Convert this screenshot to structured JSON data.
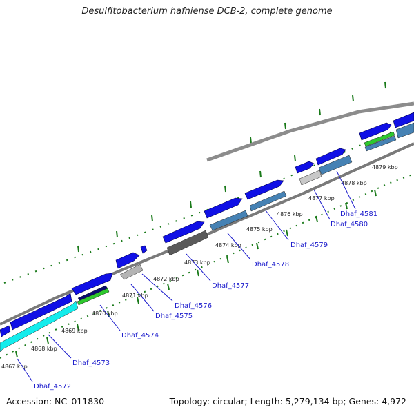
{
  "title": "Desulfitobacterium hafniense DCB-2, complete genome",
  "accession": "Accession: NC_011830",
  "topology": "Topology: circular; Length: 5,279,134 bp; Genes: 4,972",
  "colors": {
    "backbone": "#8c8c8c",
    "forward_gene": "#1010e6",
    "ticks": "#1a7a1a",
    "cyan_gene": "#14ecec",
    "green_gene": "#2ec82e",
    "navy_gene": "#0a0a6e",
    "steel_gene": "#4682b4",
    "gray_gene": "#b4b4b4",
    "dark_gray_gene": "#5a5a5a",
    "label": "#1a1acc"
  },
  "kbp_labels": [
    "4867 kbp",
    "4868 kbp",
    "4869 kbp",
    "4870 kbp",
    "4871 kbp",
    "4872 kbp",
    "4873 kbp",
    "4874 kbp",
    "4875 kbp",
    "4876 kbp",
    "4877 kbp",
    "4878 kbp",
    "4879 kbp"
  ],
  "gene_labels": [
    "Dhaf_4572",
    "Dhaf_4573",
    "Dhaf_4574",
    "Dhaf_4575",
    "Dhaf_4576",
    "Dhaf_4577",
    "Dhaf_4578",
    "Dhaf_4579",
    "Dhaf_4580",
    "Dhaf_4581"
  ]
}
